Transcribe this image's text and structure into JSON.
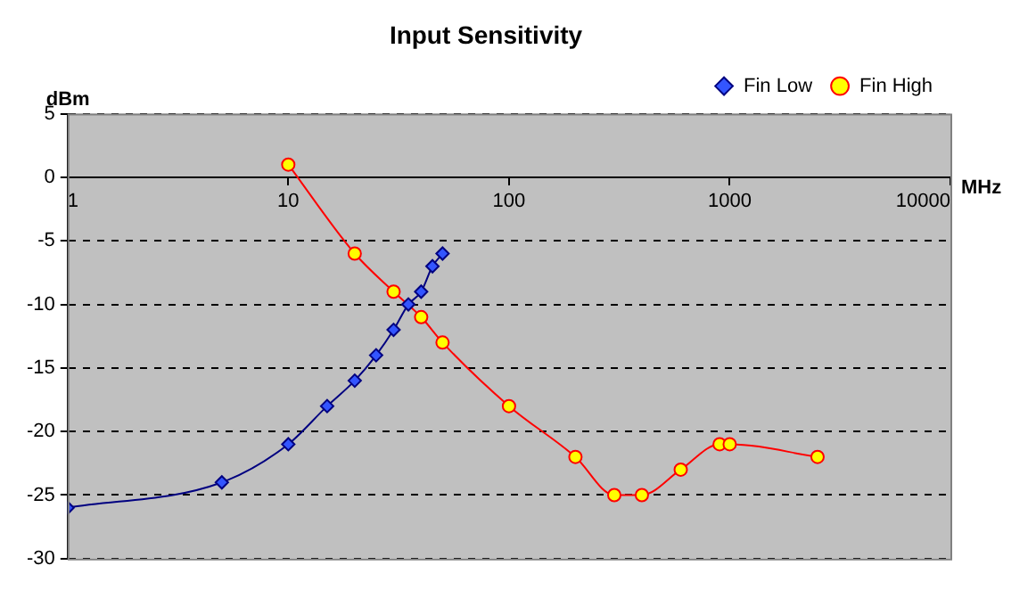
{
  "chart_data": {
    "type": "line",
    "title": "Input Sensitivity",
    "xlabel": "MHz",
    "ylabel": "dBm",
    "log": "x",
    "xlim": [
      1,
      10000
    ],
    "xticks": [
      1,
      10,
      100,
      1000,
      10000
    ],
    "ylim": [
      -30,
      5
    ],
    "yticks": [
      -30,
      -25,
      -20,
      -15,
      -10,
      -5,
      0,
      5
    ],
    "grid": "y",
    "legend": "top right",
    "series": [
      {
        "name": "Fin Low",
        "color": "#000080",
        "marker": "diamond",
        "x": [
          1,
          5,
          10,
          15,
          20,
          25,
          30,
          35,
          40,
          45,
          50
        ],
        "values": [
          -26,
          -24,
          -21,
          -18,
          -16,
          -14,
          -12,
          -10,
          -9,
          -7,
          -6
        ]
      },
      {
        "name": "Fin High",
        "color": "#ff0000",
        "marker": "circle",
        "x": [
          10,
          20,
          30,
          40,
          50,
          100,
          200,
          300,
          400,
          600,
          900,
          1000,
          2500
        ],
        "values": [
          1,
          -6,
          -9,
          -11,
          -13,
          -18,
          -22,
          -25,
          -25,
          -23,
          -21,
          -21,
          -22
        ]
      }
    ]
  }
}
